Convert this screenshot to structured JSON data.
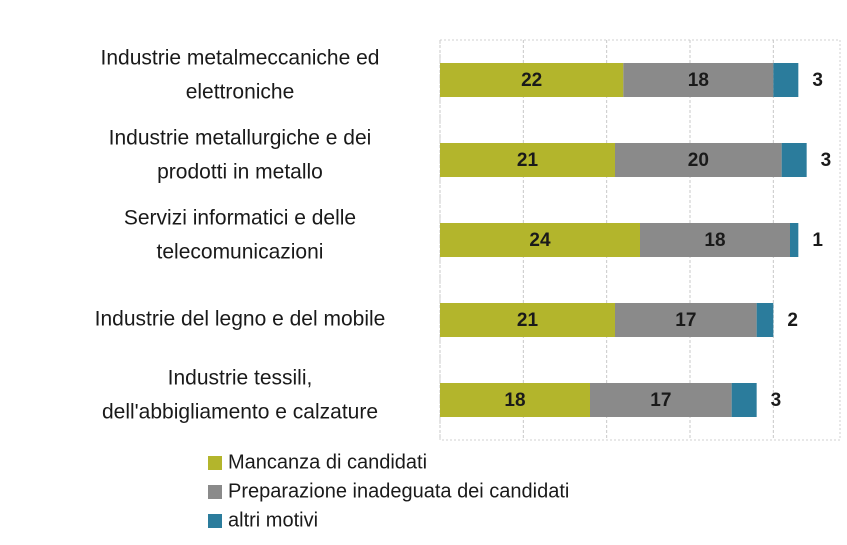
{
  "chart_data": {
    "type": "stacked_bar_horizontal",
    "categories": [
      [
        "Industrie metalmeccaniche ed",
        "elettroniche"
      ],
      [
        "Industrie metallurgiche e dei",
        "prodotti in metallo"
      ],
      [
        "Servizi informatici e delle",
        "telecomunicazioni"
      ],
      [
        "Industrie del legno e del mobile"
      ],
      [
        "Industrie tessili,",
        "dell'abbigliamento e calzature"
      ]
    ],
    "series": [
      {
        "name": "Mancanza di candidati",
        "color": "#b3b52c",
        "values": [
          22,
          21,
          24,
          21,
          18
        ]
      },
      {
        "name": "Preparazione inadeguata dei candidati",
        "color": "#8a8a8a",
        "values": [
          18,
          20,
          18,
          17,
          17
        ]
      },
      {
        "name": "altri motivi",
        "color": "#2b7c9c",
        "values": [
          3,
          3,
          1,
          2,
          3
        ]
      }
    ],
    "xlim": [
      0,
      48
    ],
    "xticks": [
      0,
      10,
      20,
      30,
      40
    ],
    "grid": true
  }
}
